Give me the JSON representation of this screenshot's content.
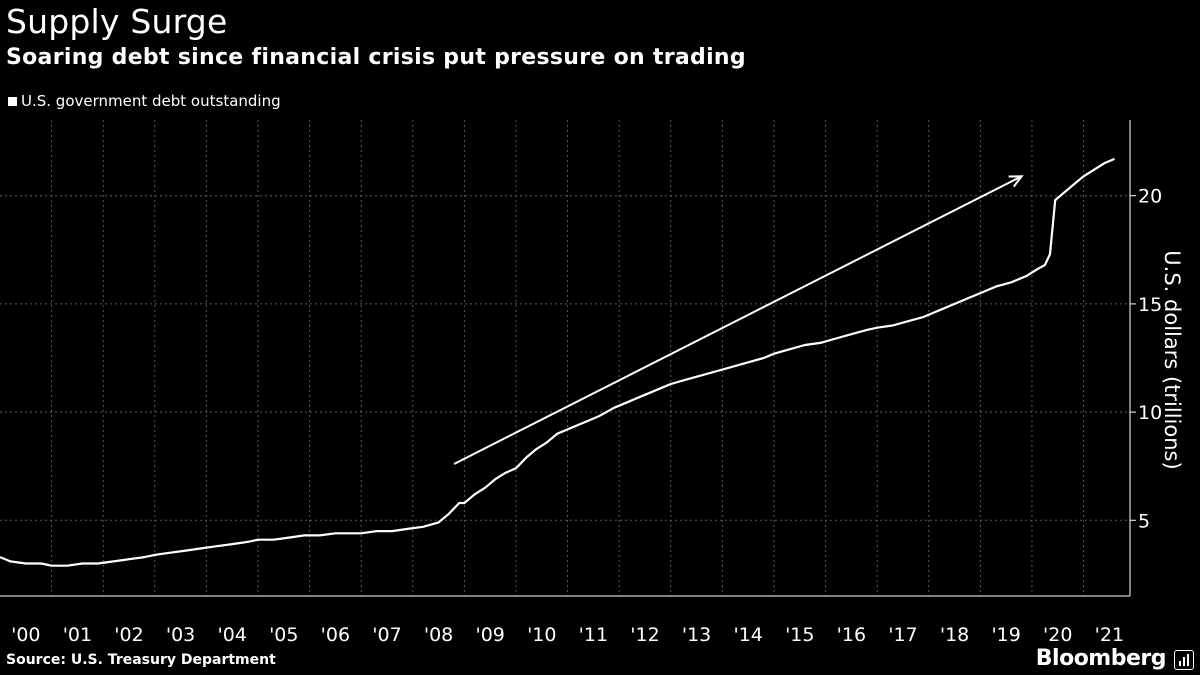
{
  "header": {
    "title": "Supply Surge",
    "subtitle": "Soaring debt since financial crisis put pressure on trading"
  },
  "legend": {
    "label": "U.S. government debt outstanding"
  },
  "footer": {
    "source": "Source: U.S. Treasury Department",
    "brand": "Bloomberg"
  },
  "chart_data": {
    "type": "line",
    "title": "Supply Surge",
    "subtitle": "Soaring debt since financial crisis put pressure on trading",
    "ylabel": "U.S. dollars (trillions)",
    "xlabel": "",
    "x_tick_labels": [
      "'00",
      "'01",
      "'02",
      "'03",
      "'04",
      "'05",
      "'06",
      "'07",
      "'08",
      "'09",
      "'10",
      "'11",
      "'12",
      "'13",
      "'14",
      "'15",
      "'16",
      "'17",
      "'18",
      "'19",
      "'20",
      "'21"
    ],
    "y_ticks": [
      5,
      10,
      15,
      20
    ],
    "xlim": [
      2000.0,
      2021.9
    ],
    "ylim": [
      1.5,
      23.5
    ],
    "grid": "vertical dotted lines at years, horizontal dotted lines at y ticks",
    "y_axis_position": "right",
    "legend_position": "top-left",
    "colors": {
      "background": "#000000",
      "line": "#ffffff",
      "grid": "#5a5a5a"
    },
    "series": [
      {
        "name": "U.S. government debt outstanding",
        "x": [
          2000.0,
          2000.2,
          2000.5,
          2000.8,
          2001.0,
          2001.3,
          2001.6,
          2001.9,
          2002.2,
          2002.5,
          2002.8,
          2003.0,
          2003.3,
          2003.6,
          2003.9,
          2004.2,
          2004.5,
          2004.8,
          2005.0,
          2005.3,
          2005.6,
          2005.9,
          2006.2,
          2006.5,
          2006.8,
          2007.0,
          2007.3,
          2007.6,
          2007.9,
          2008.2,
          2008.5,
          2008.7,
          2008.9,
          2009.0,
          2009.2,
          2009.4,
          2009.6,
          2009.8,
          2010.0,
          2010.2,
          2010.4,
          2010.6,
          2010.8,
          2011.0,
          2011.3,
          2011.6,
          2011.9,
          2012.2,
          2012.5,
          2012.8,
          2013.0,
          2013.3,
          2013.6,
          2013.9,
          2014.2,
          2014.5,
          2014.8,
          2015.0,
          2015.3,
          2015.6,
          2015.9,
          2016.2,
          2016.5,
          2016.8,
          2017.0,
          2017.3,
          2017.6,
          2017.9,
          2018.2,
          2018.5,
          2018.8,
          2019.0,
          2019.3,
          2019.6,
          2019.9,
          2020.1,
          2020.25,
          2020.35,
          2020.45,
          2020.6,
          2020.8,
          2021.0,
          2021.2,
          2021.4,
          2021.6
        ],
        "values": [
          3.3,
          3.1,
          3.0,
          3.0,
          2.9,
          2.9,
          3.0,
          3.0,
          3.1,
          3.2,
          3.3,
          3.4,
          3.5,
          3.6,
          3.7,
          3.8,
          3.9,
          4.0,
          4.1,
          4.1,
          4.2,
          4.3,
          4.3,
          4.4,
          4.4,
          4.4,
          4.5,
          4.5,
          4.6,
          4.7,
          4.9,
          5.3,
          5.8,
          5.8,
          6.2,
          6.5,
          6.9,
          7.2,
          7.4,
          7.9,
          8.3,
          8.6,
          9.0,
          9.2,
          9.5,
          9.8,
          10.2,
          10.5,
          10.8,
          11.1,
          11.3,
          11.5,
          11.7,
          11.9,
          12.1,
          12.3,
          12.5,
          12.7,
          12.9,
          13.1,
          13.2,
          13.4,
          13.6,
          13.8,
          13.9,
          14.0,
          14.2,
          14.4,
          14.7,
          15.0,
          15.3,
          15.5,
          15.8,
          16.0,
          16.3,
          16.6,
          16.8,
          17.3,
          19.8,
          20.1,
          20.5,
          20.9,
          21.2,
          21.5,
          21.7
        ]
      }
    ],
    "annotations": [
      {
        "type": "arrow",
        "from": {
          "x": 2008.8,
          "y": 7.6
        },
        "to": {
          "x": 2019.8,
          "y": 20.9
        }
      }
    ]
  }
}
